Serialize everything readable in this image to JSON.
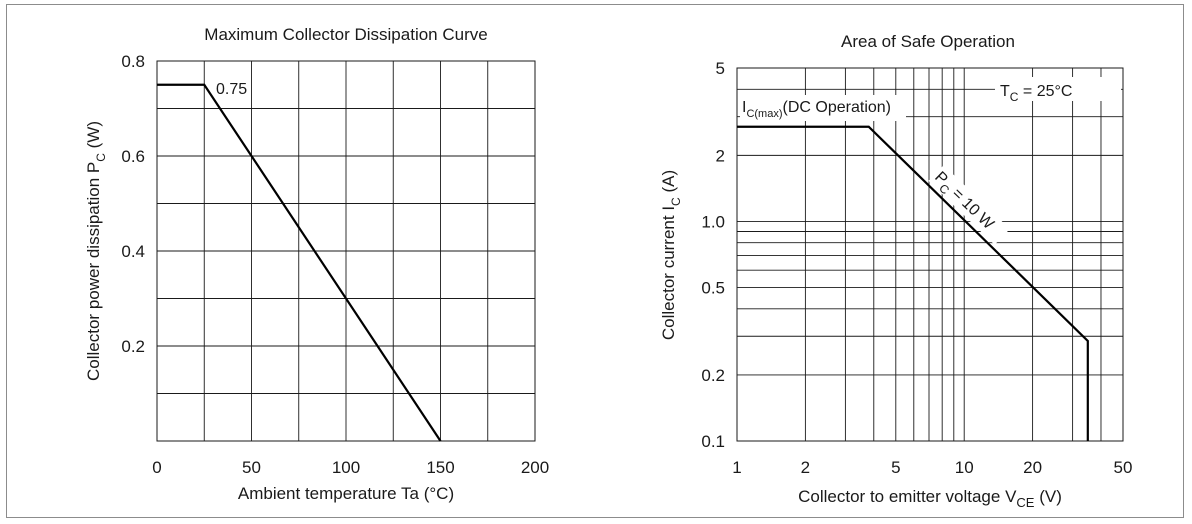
{
  "chart_data": [
    {
      "type": "line",
      "title": "Maximum Collector Dissipation Curve",
      "xlabel": "Ambient temperature  Ta  (°C)",
      "ylabel": "Collector power dissipation  P",
      "ylabel_sub": "C",
      "ylabel_unit": "  (W)",
      "xlim": [
        0,
        200
      ],
      "ylim": [
        0,
        0.8
      ],
      "x_ticks": [
        0,
        50,
        100,
        150,
        200
      ],
      "x_tick_labels": [
        "0",
        "50",
        "100",
        "150",
        "200"
      ],
      "y_ticks": [
        0.2,
        0.4,
        0.6,
        0.8
      ],
      "y_tick_labels": [
        "0.2",
        "0.4",
        "0.6",
        "0.8"
      ],
      "x_grid": [
        25,
        50,
        75,
        100,
        125,
        150,
        175
      ],
      "y_grid": [
        0.1,
        0.2,
        0.3,
        0.4,
        0.5,
        0.6,
        0.7
      ],
      "grid": true,
      "series": [
        {
          "x": [
            0,
            25,
            150
          ],
          "y": [
            0.75,
            0.75,
            0
          ]
        }
      ],
      "annotations": [
        {
          "text": "0.75",
          "x": 25,
          "y": 0.75
        }
      ]
    },
    {
      "type": "line",
      "title": "Area of Safe Operation",
      "xlabel": "Collector to emitter voltage  V",
      "xlabel_sub": "CE",
      "xlabel_unit": "  (V)",
      "ylabel": "Collector current  I",
      "ylabel_sub": "C",
      "ylabel_unit": "  (A)",
      "xscale": "log",
      "yscale": "log",
      "xlim": [
        1,
        50
      ],
      "ylim": [
        0.1,
        5
      ],
      "x_ticks": [
        1,
        2,
        5,
        10,
        20,
        50
      ],
      "x_tick_labels": [
        "1",
        "2",
        "5",
        "10",
        "20",
        "50"
      ],
      "y_ticks": [
        0.1,
        0.2,
        0.5,
        1.0,
        2,
        5
      ],
      "y_tick_labels": [
        "0.1",
        "0.2",
        "0.5",
        "1.0",
        "2",
        "5"
      ],
      "grid": true,
      "series": [
        {
          "x": [
            1,
            3.8,
            35,
            35
          ],
          "y": [
            2.7,
            2.7,
            0.2857,
            0.1
          ]
        }
      ],
      "annotations": [
        {
          "text_main": "I",
          "text_sub": "C(max)",
          "text_rest": "(DC Operation)"
        },
        {
          "text_main": "T",
          "text_sub": "C",
          "text_rest": " = 25°C"
        },
        {
          "text_main": "P",
          "text_sub": "C",
          "text_rest": " = 10 W"
        }
      ]
    }
  ]
}
